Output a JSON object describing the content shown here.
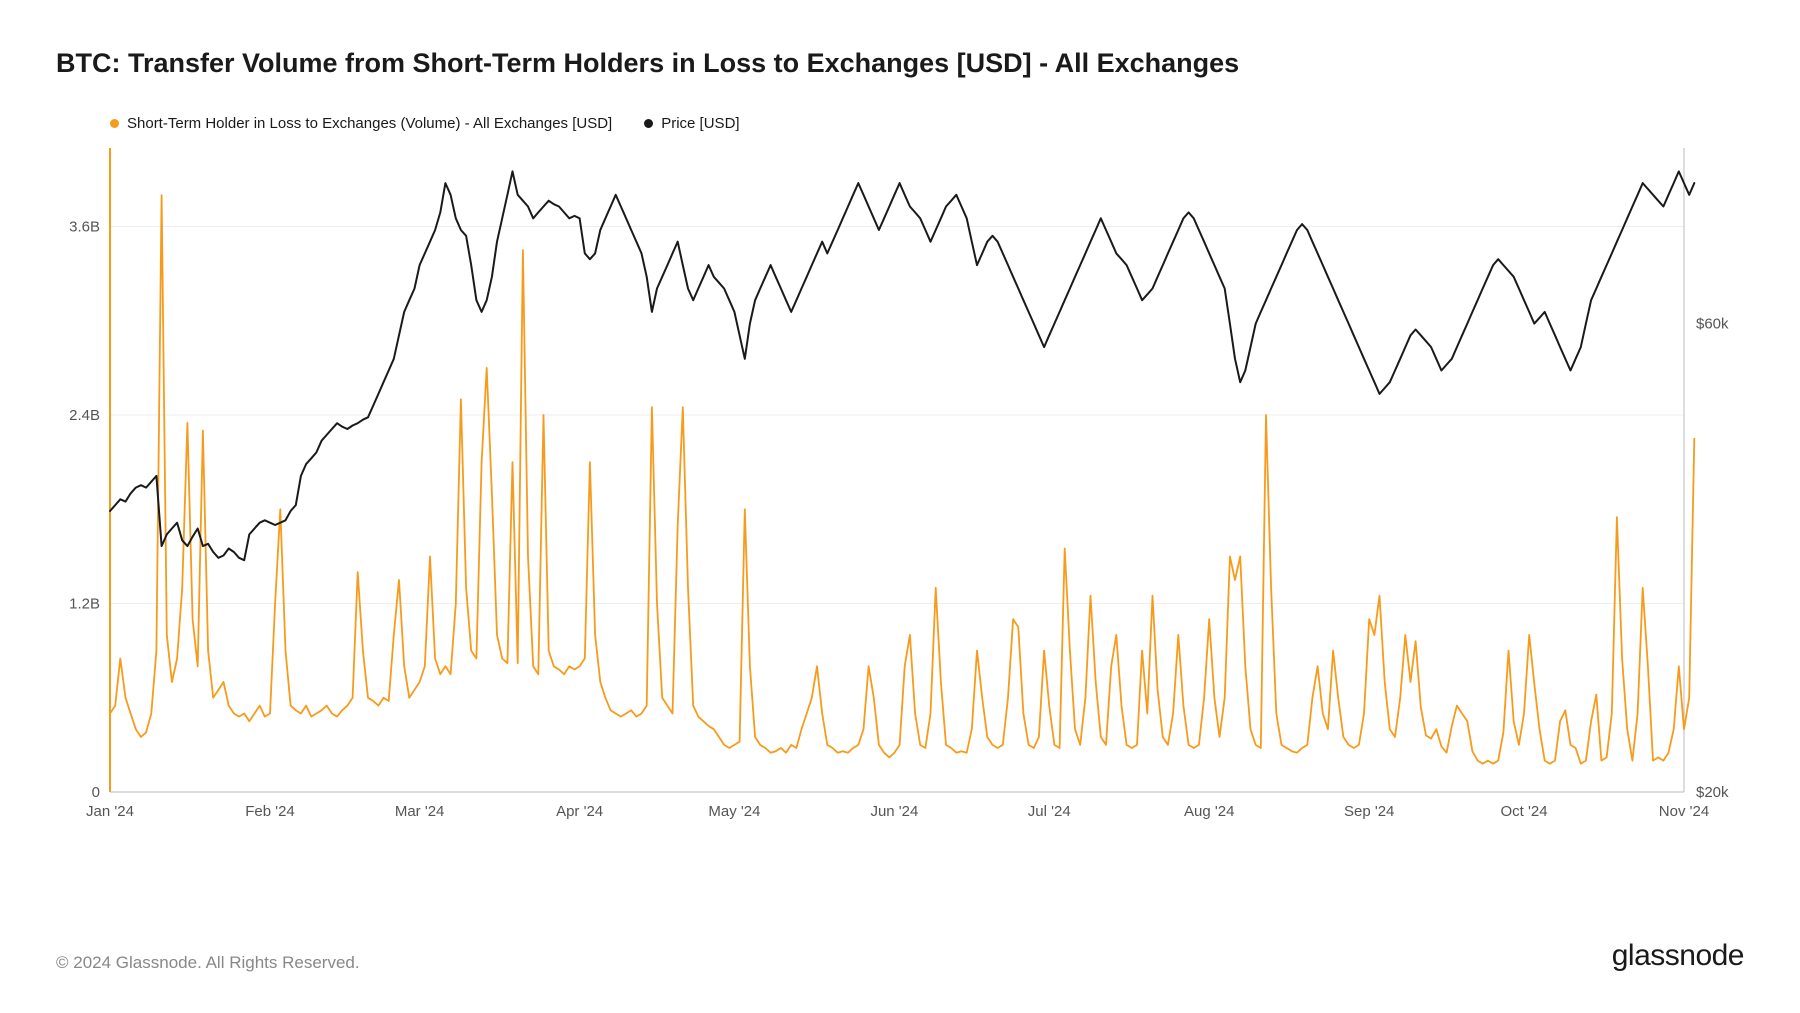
{
  "title": "BTC: Transfer Volume from Short-Term Holders in Loss to Exchanges [USD] - All Exchanges",
  "legend": {
    "series1": {
      "label": "Short-Term Holder in Loss to Exchanges (Volume) - All Exchanges [USD]",
      "color": "#f79b1d"
    },
    "series2": {
      "label": "Price [USD]",
      "color": "#1a1a1a"
    }
  },
  "copyright": "© 2024 Glassnode. All Rights Reserved.",
  "logo": "glassnode",
  "chart": {
    "type": "line",
    "background_color": "#ffffff",
    "grid_color": "#eeeeee",
    "axis_color": "#bbbbbb",
    "label_color": "#555555",
    "label_fontsize": 15,
    "line_width_volume": 1.8,
    "line_width_price": 2.0,
    "y_left": {
      "min": 0,
      "max": 4.1,
      "ticks": [
        0,
        1.2,
        2.4,
        3.6
      ],
      "tick_labels": [
        "0",
        "1.2B",
        "2.4B",
        "3.6B"
      ]
    },
    "y_right": {
      "min": 20,
      "max": 75,
      "ticks": [
        20,
        60
      ],
      "tick_labels": [
        "$20k",
        "$60k"
      ]
    },
    "x": {
      "min": 0,
      "max": 305,
      "ticks": [
        0,
        31,
        60,
        91,
        121,
        152,
        182,
        213,
        244,
        274,
        305
      ],
      "tick_labels": [
        "Jan '24",
        "Feb '24",
        "Mar '24",
        "Apr '24",
        "May '24",
        "Jun '24",
        "Jul '24",
        "Aug '24",
        "Sep '24",
        "Oct '24",
        "Nov '24"
      ]
    },
    "volume": [
      0.5,
      0.55,
      0.85,
      0.6,
      0.5,
      0.4,
      0.35,
      0.38,
      0.5,
      0.9,
      3.8,
      1.0,
      0.7,
      0.85,
      1.3,
      2.35,
      1.1,
      0.8,
      2.3,
      0.9,
      0.6,
      0.65,
      0.7,
      0.55,
      0.5,
      0.48,
      0.5,
      0.45,
      0.5,
      0.55,
      0.48,
      0.5,
      1.2,
      1.8,
      0.9,
      0.55,
      0.52,
      0.5,
      0.55,
      0.48,
      0.5,
      0.52,
      0.55,
      0.5,
      0.48,
      0.52,
      0.55,
      0.6,
      1.4,
      0.9,
      0.6,
      0.58,
      0.55,
      0.6,
      0.58,
      1.0,
      1.35,
      0.8,
      0.6,
      0.65,
      0.7,
      0.8,
      1.5,
      0.85,
      0.75,
      0.8,
      0.75,
      1.2,
      2.5,
      1.3,
      0.9,
      0.85,
      2.1,
      2.7,
      1.9,
      1.0,
      0.85,
      0.82,
      2.1,
      0.82,
      3.45,
      1.5,
      0.8,
      0.75,
      2.4,
      0.9,
      0.8,
      0.78,
      0.75,
      0.8,
      0.78,
      0.8,
      0.85,
      2.1,
      1.0,
      0.7,
      0.6,
      0.52,
      0.5,
      0.48,
      0.5,
      0.52,
      0.48,
      0.5,
      0.55,
      2.45,
      1.2,
      0.6,
      0.55,
      0.5,
      1.7,
      2.45,
      1.3,
      0.55,
      0.48,
      0.45,
      0.42,
      0.4,
      0.35,
      0.3,
      0.28,
      0.3,
      0.32,
      1.8,
      0.8,
      0.35,
      0.3,
      0.28,
      0.25,
      0.26,
      0.28,
      0.25,
      0.3,
      0.28,
      0.4,
      0.5,
      0.6,
      0.8,
      0.5,
      0.3,
      0.28,
      0.25,
      0.26,
      0.25,
      0.28,
      0.3,
      0.4,
      0.8,
      0.6,
      0.3,
      0.25,
      0.22,
      0.25,
      0.3,
      0.8,
      1.0,
      0.5,
      0.3,
      0.28,
      0.5,
      1.3,
      0.7,
      0.3,
      0.28,
      0.25,
      0.26,
      0.25,
      0.4,
      0.9,
      0.6,
      0.35,
      0.3,
      0.28,
      0.3,
      0.6,
      1.1,
      1.05,
      0.5,
      0.3,
      0.28,
      0.35,
      0.9,
      0.55,
      0.3,
      0.28,
      1.55,
      0.9,
      0.4,
      0.3,
      0.6,
      1.25,
      0.7,
      0.35,
      0.3,
      0.8,
      1.0,
      0.55,
      0.3,
      0.28,
      0.3,
      0.9,
      0.5,
      1.25,
      0.65,
      0.35,
      0.3,
      0.5,
      1.0,
      0.55,
      0.3,
      0.28,
      0.3,
      0.6,
      1.1,
      0.6,
      0.35,
      0.6,
      1.5,
      1.35,
      1.5,
      0.8,
      0.4,
      0.3,
      0.28,
      2.4,
      1.3,
      0.5,
      0.3,
      0.28,
      0.26,
      0.25,
      0.28,
      0.3,
      0.6,
      0.8,
      0.5,
      0.4,
      0.9,
      0.6,
      0.35,
      0.3,
      0.28,
      0.3,
      0.5,
      1.1,
      1.0,
      1.25,
      0.7,
      0.4,
      0.35,
      0.6,
      1.0,
      0.7,
      0.96,
      0.54,
      0.36,
      0.34,
      0.4,
      0.29,
      0.25,
      0.42,
      0.55,
      0.5,
      0.45,
      0.26,
      0.2,
      0.18,
      0.2,
      0.18,
      0.2,
      0.38,
      0.9,
      0.45,
      0.3,
      0.5,
      1.0,
      0.69,
      0.4,
      0.2,
      0.18,
      0.2,
      0.45,
      0.52,
      0.3,
      0.28,
      0.18,
      0.2,
      0.45,
      0.62,
      0.2,
      0.22,
      0.5,
      1.75,
      0.85,
      0.4,
      0.2,
      0.5,
      1.3,
      0.8,
      0.2,
      0.22,
      0.2,
      0.25,
      0.4,
      0.8,
      0.4,
      0.6,
      2.25
    ],
    "price": [
      44,
      44.5,
      45,
      44.8,
      45.5,
      46,
      46.2,
      46,
      46.5,
      47,
      41,
      42,
      42.5,
      43,
      41.5,
      41,
      41.8,
      42.5,
      41,
      41.2,
      40.5,
      40,
      40.2,
      40.8,
      40.5,
      40,
      39.8,
      42,
      42.5,
      43,
      43.2,
      43,
      42.8,
      43,
      43.2,
      44,
      44.5,
      47,
      48,
      48.5,
      49,
      50,
      50.5,
      51,
      51.5,
      51.2,
      51,
      51.3,
      51.5,
      51.8,
      52,
      53,
      54,
      55,
      56,
      57,
      59,
      61,
      62,
      63,
      65,
      66,
      67,
      68,
      69.5,
      72,
      71,
      69,
      68,
      67.5,
      65,
      62,
      61,
      62,
      64,
      67,
      69,
      71,
      73,
      71,
      70.5,
      70,
      69,
      69.5,
      70,
      70.5,
      70.2,
      70,
      69.5,
      69,
      69.2,
      69,
      66,
      65.5,
      66,
      68,
      69,
      70,
      71,
      70,
      69,
      68,
      67,
      66,
      64,
      61,
      63,
      64,
      65,
      66,
      67,
      65,
      63,
      62,
      63,
      64,
      65,
      64,
      63.5,
      63,
      62,
      61,
      59,
      57,
      60,
      62,
      63,
      64,
      65,
      64,
      63,
      62,
      61,
      62,
      63,
      64,
      65,
      66,
      67,
      66,
      67,
      68,
      69,
      70,
      71,
      72,
      71,
      70,
      69,
      68,
      69,
      70,
      71,
      72,
      71,
      70,
      69.5,
      69,
      68,
      67,
      68,
      69,
      70,
      70.5,
      71,
      70,
      69,
      67,
      65,
      66,
      67,
      67.5,
      67,
      66,
      65,
      64,
      63,
      62,
      61,
      60,
      59,
      58,
      59,
      60,
      61,
      62,
      63,
      64,
      65,
      66,
      67,
      68,
      69,
      68,
      67,
      66,
      65.5,
      65,
      64,
      63,
      62,
      62.5,
      63,
      64,
      65,
      66,
      67,
      68,
      69,
      69.5,
      69,
      68,
      67,
      66,
      65,
      64,
      63,
      60,
      57,
      55,
      56,
      58,
      60,
      61,
      62,
      63,
      64,
      65,
      66,
      67,
      68,
      68.5,
      68,
      67,
      66,
      65,
      64,
      63,
      62,
      61,
      60,
      59,
      58,
      57,
      56,
      55,
      54,
      54.5,
      55,
      56,
      57,
      58,
      59,
      59.5,
      59,
      58.5,
      58,
      57,
      56,
      56.5,
      57,
      58,
      59,
      60,
      61,
      62,
      63,
      64,
      65,
      65.5,
      65,
      64.5,
      64,
      63,
      62,
      61,
      60,
      60.5,
      61,
      60,
      59,
      58,
      57,
      56,
      57,
      58,
      60,
      62,
      63,
      64,
      65,
      66,
      67,
      68,
      69,
      70,
      71,
      72,
      71.5,
      71,
      70.5,
      70,
      71,
      72,
      73,
      72,
      71,
      72
    ]
  }
}
